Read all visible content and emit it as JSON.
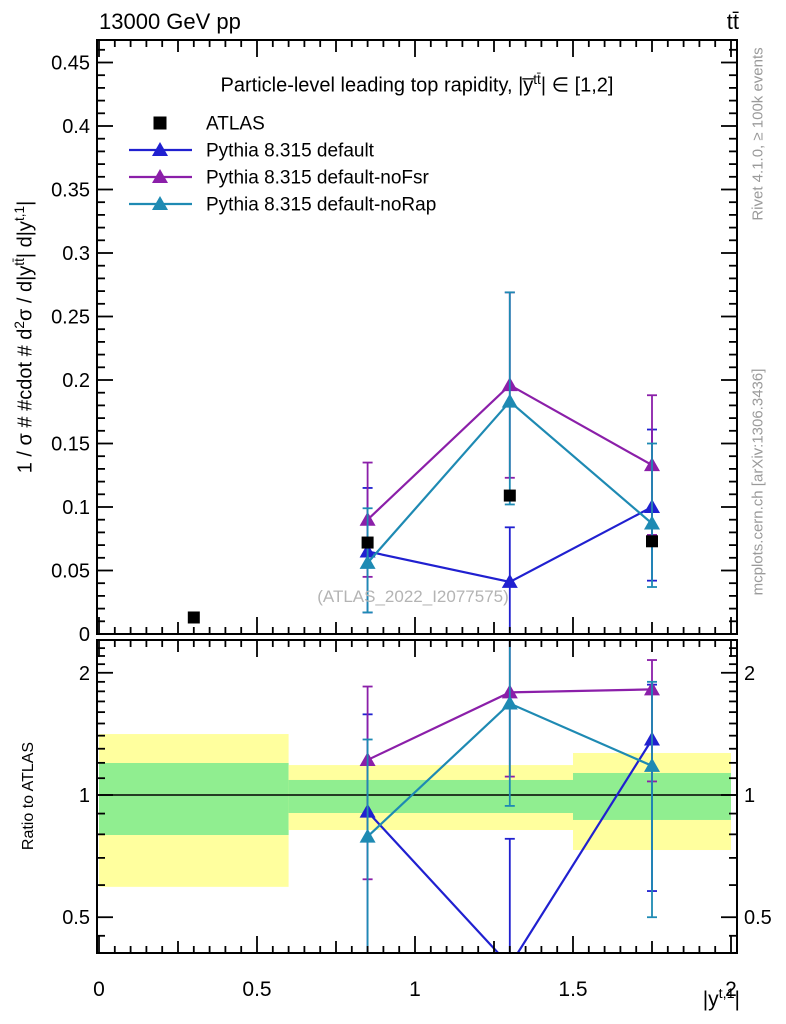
{
  "header": {
    "left": "13000 GeV pp",
    "right": "tt̄"
  },
  "title": "Particle-level leading top rapidity, |y̅^{tt̄}| ∈ [1,2]",
  "axes": {
    "main_ylabel": "1 / σ # #cdot # d^{2}σ / d|y^{tt̄}| d|y^{t,1}|",
    "ratio_ylabel": "Ratio to ATLAS",
    "xlabel": "|y^{t,1}|",
    "x_tick_labels": [
      "0",
      "0.5",
      "1",
      "1.5",
      "2"
    ],
    "x_tick_values": [
      0,
      0.5,
      1,
      1.5,
      2
    ],
    "main_y_tick_labels": [
      "0",
      "0.05",
      "0.1",
      "0.15",
      "0.2",
      "0.25",
      "0.3",
      "0.35",
      "0.4",
      "0.45"
    ],
    "main_y_tick_values": [
      0,
      0.05,
      0.1,
      0.15,
      0.2,
      0.25,
      0.3,
      0.35,
      0.4,
      0.45
    ],
    "ratio_y_tick_labels": [
      "0.5",
      "1",
      "2"
    ],
    "ratio_y_tick_values": [
      0.5,
      1,
      2
    ],
    "ratio_y_minor_ticks": [
      0.45,
      0.6,
      0.7,
      0.8,
      0.9,
      1.1,
      1.2,
      1.3,
      1.4,
      1.5,
      1.6,
      1.7,
      1.8,
      1.9,
      2.1,
      2.2,
      2.3,
      2.4
    ]
  },
  "captions": {
    "right_top": "Rivet 4.1.0, ≥ 100k events",
    "right_bottom": "mcplots.cern.ch [arXiv:1306.3436]",
    "watermark": "(ATLAS_2022_I2077575)"
  },
  "legend": [
    {
      "label": "ATLAS",
      "marker": "square",
      "color": "#000000"
    },
    {
      "label": "Pythia 8.315 default",
      "marker": "triangle",
      "color": "#2020d0"
    },
    {
      "label": "Pythia 8.315 default-noFsr",
      "marker": "triangle",
      "color": "#8b1fa9"
    },
    {
      "label": "Pythia 8.315 default-noRap",
      "marker": "triangle",
      "color": "#1e8ab3"
    }
  ],
  "colors": {
    "blue": "#2020d0",
    "purple": "#8b1fa9",
    "teal": "#1e8ab3",
    "yellow_band": "#ffff9e",
    "green_band": "#90ee90",
    "frame": "#000000",
    "gray_text": "#9a9a9a"
  },
  "chart_data": {
    "type": "scatter",
    "title": "Particle-level leading top rapidity, |y̅^{tt̄}| ∈ [1,2]",
    "xlabel": "|y^{t,1}|",
    "ylabel": "1 / σ # #cdot # d^{2}σ / d|y^{tt̄}| d|y^{t,1}|",
    "ratio_ylabel": "Ratio to ATLAS",
    "xlim": [
      0,
      2.02
    ],
    "main_ylim": [
      0,
      0.468
    ],
    "ratio_ylim": [
      0.408,
      2.41
    ],
    "ratio_scale": "log",
    "grid": false,
    "legend_position": "top-left-inside",
    "reference": {
      "name": "ATLAS",
      "x": [
        0.3,
        0.85,
        1.3,
        1.75
      ],
      "y": [
        0.013,
        0.072,
        0.109,
        0.073
      ]
    },
    "series": [
      {
        "name": "Pythia 8.315 default",
        "color": "#2020d0",
        "x": [
          0.85,
          1.3,
          1.75
        ],
        "y": [
          0.065,
          0.041,
          0.1
        ],
        "y_lo": [
          0.017,
          0.0,
          0.042
        ],
        "y_hi": [
          0.115,
          0.084,
          0.161
        ],
        "ratio": [
          0.91,
          0.38,
          1.37
        ],
        "ratio_lo": [
          0.3,
          0.3,
          0.58
        ],
        "ratio_hi": [
          1.58,
          0.78,
          1.87
        ]
      },
      {
        "name": "Pythia 8.315 default-noFsr",
        "color": "#8b1fa9",
        "x": [
          0.85,
          1.3,
          1.75
        ],
        "y": [
          0.09,
          0.196,
          0.133
        ],
        "y_lo": [
          0.045,
          0.123,
          0.078
        ],
        "y_hi": [
          0.135,
          0.269,
          0.188
        ],
        "ratio": [
          1.22,
          1.79,
          1.82
        ],
        "ratio_lo": [
          0.62,
          1.11,
          1.08
        ],
        "ratio_hi": [
          1.85,
          2.47,
          2.15
        ]
      },
      {
        "name": "Pythia 8.315 default-noRap",
        "color": "#1e8ab3",
        "x": [
          0.85,
          1.3,
          1.75
        ],
        "y": [
          0.056,
          0.183,
          0.087
        ],
        "y_lo": [
          0.017,
          0.102,
          0.037
        ],
        "y_hi": [
          0.099,
          0.269,
          0.15
        ],
        "ratio": [
          0.79,
          1.68,
          1.18
        ],
        "ratio_lo": [
          0.3,
          0.94,
          0.5
        ],
        "ratio_hi": [
          1.37,
          2.47,
          1.9
        ]
      }
    ],
    "ratio_bands": [
      {
        "x0": 0.0,
        "x1": 0.6,
        "yellow": [
          0.594,
          1.413
        ],
        "green": [
          0.797,
          1.199
        ]
      },
      {
        "x0": 0.6,
        "x1": 1.5,
        "yellow": [
          0.82,
          1.185
        ],
        "green": [
          0.903,
          1.089
        ]
      },
      {
        "x0": 1.5,
        "x1": 2.0,
        "yellow": [
          0.732,
          1.269
        ],
        "green": [
          0.868,
          1.133
        ]
      }
    ]
  }
}
